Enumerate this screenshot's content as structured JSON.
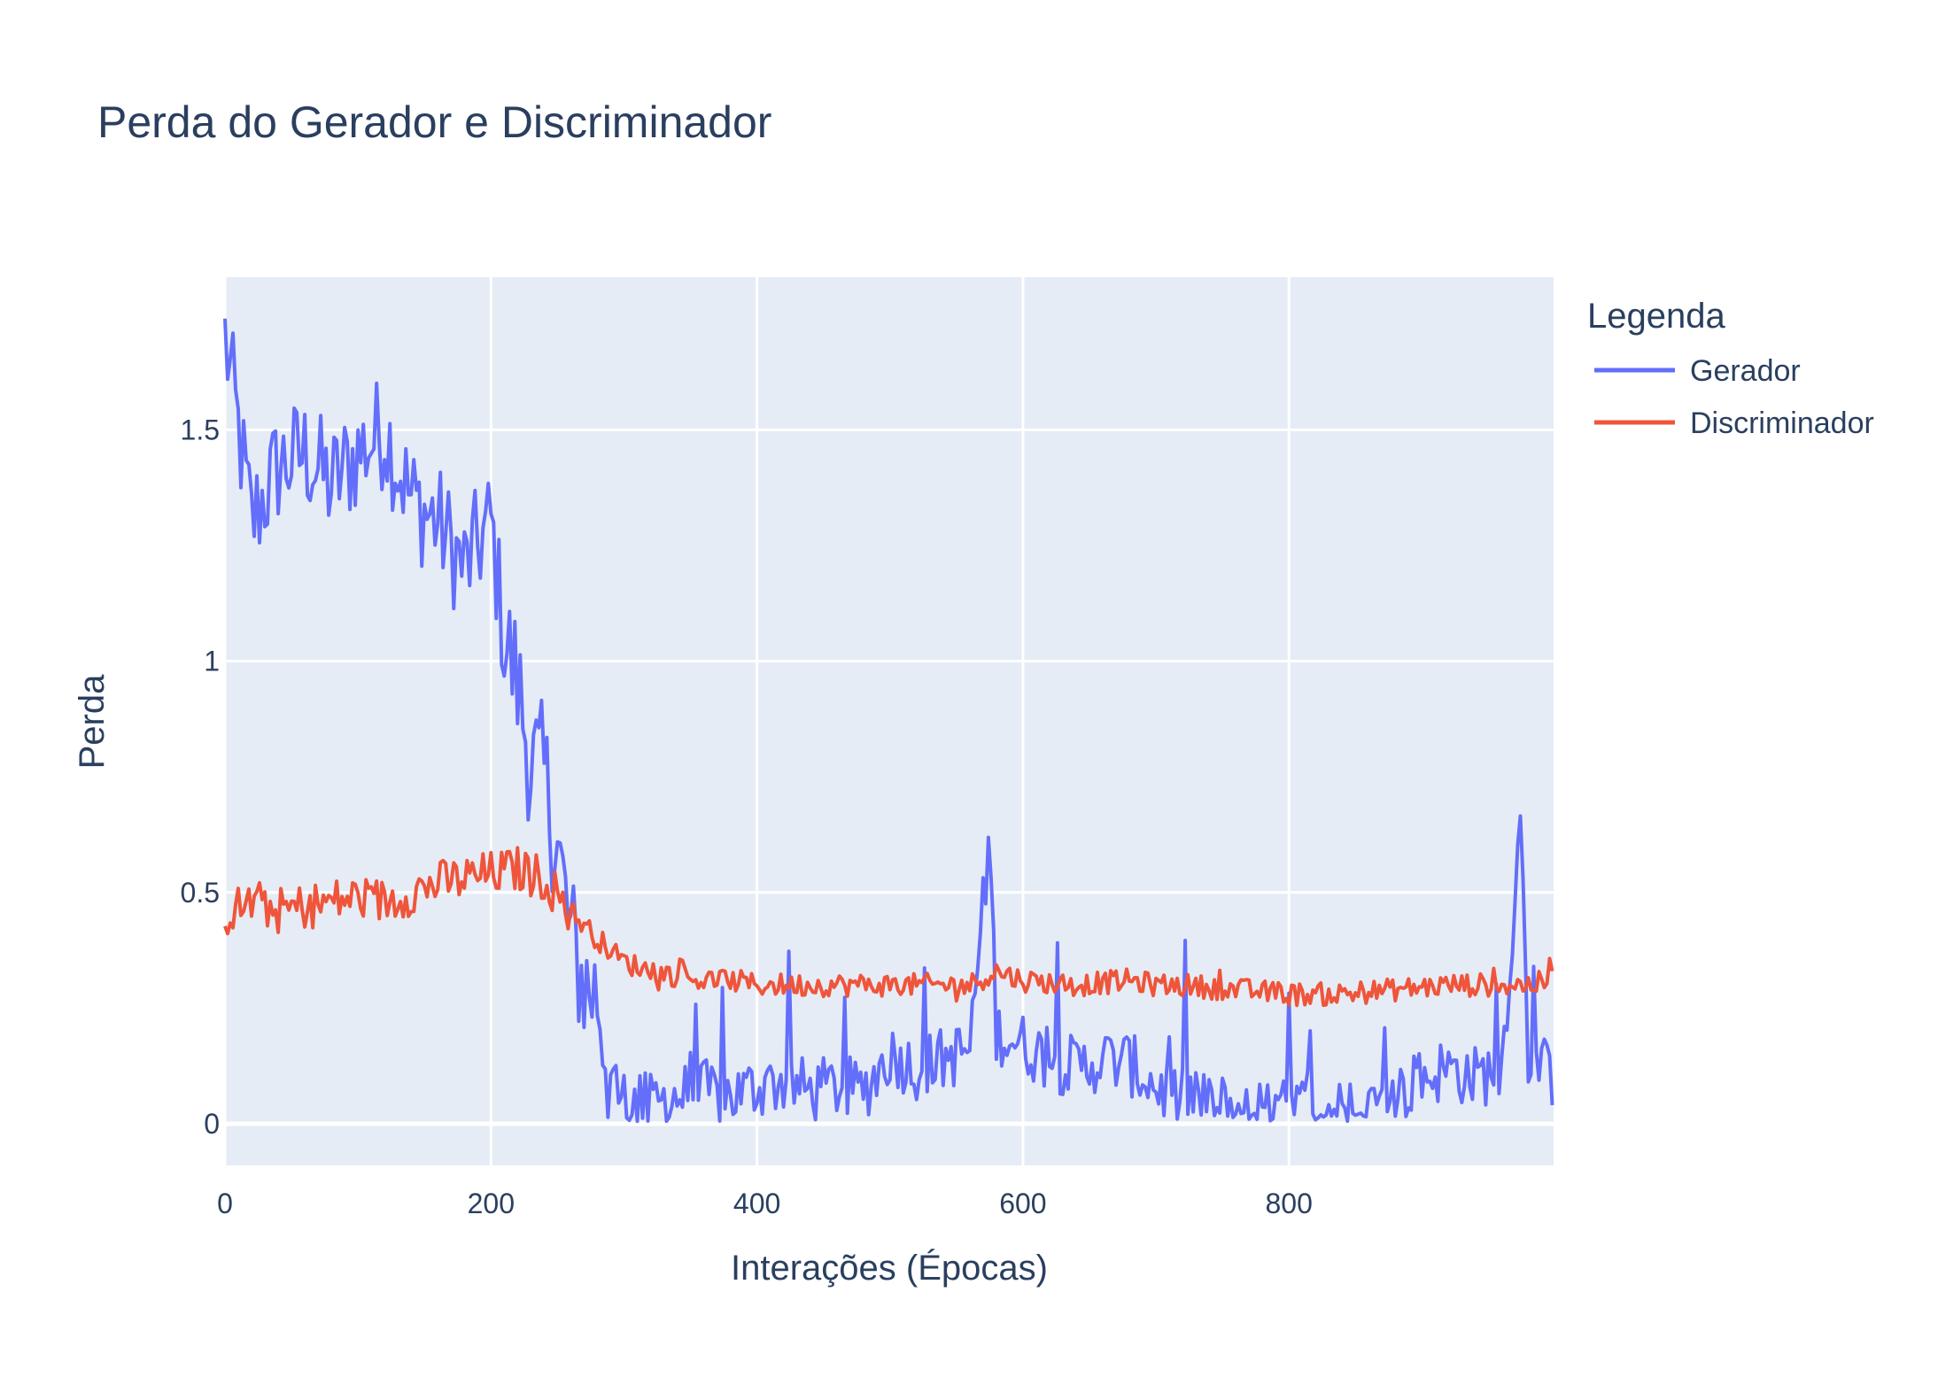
{
  "chart_data": {
    "type": "line",
    "title": "Perda do Gerador e Discriminador",
    "xlabel": "Interações (Épocas)",
    "ylabel": "Perda",
    "xlim": [
      0,
      999
    ],
    "ylim": [
      -0.09,
      1.83
    ],
    "x_ticks": [
      0,
      200,
      400,
      600,
      800
    ],
    "x_tick_labels": [
      "0",
      "200",
      "400",
      "600",
      "800"
    ],
    "y_ticks": [
      0,
      0.5,
      1,
      1.5
    ],
    "y_tick_labels": [
      "0",
      "0.5",
      "1",
      "1.5"
    ],
    "grid": true,
    "background": "#e5ecf6",
    "legend": {
      "title": "Legenda",
      "placement": "right-top",
      "entries": [
        "Gerador",
        "Discriminador"
      ]
    },
    "series": [
      {
        "name": "Gerador",
        "color": "#636efa",
        "x": [
          0,
          20,
          40,
          60,
          80,
          100,
          120,
          140,
          160,
          180,
          200,
          210,
          220,
          230,
          240,
          250,
          260,
          270,
          280,
          290,
          300,
          320,
          340,
          360,
          380,
          400,
          420,
          440,
          460,
          480,
          500,
          520,
          540,
          560,
          575,
          580,
          600,
          620,
          640,
          660,
          680,
          700,
          720,
          740,
          760,
          780,
          800,
          820,
          840,
          860,
          880,
          900,
          920,
          940,
          960,
          975,
          980,
          999
        ],
        "values": [
          1.7,
          1.3,
          1.42,
          1.45,
          1.38,
          1.45,
          1.5,
          1.35,
          1.3,
          1.2,
          1.3,
          1.05,
          0.95,
          0.78,
          0.75,
          0.6,
          0.4,
          0.3,
          0.28,
          0.1,
          0.05,
          0.04,
          0.06,
          0.07,
          0.06,
          0.08,
          0.09,
          0.07,
          0.08,
          0.07,
          0.15,
          0.12,
          0.14,
          0.16,
          0.62,
          0.2,
          0.17,
          0.14,
          0.12,
          0.14,
          0.13,
          0.08,
          0.05,
          0.04,
          0.04,
          0.03,
          0.03,
          0.04,
          0.03,
          0.02,
          0.06,
          0.1,
          0.12,
          0.1,
          0.12,
          0.68,
          0.15,
          0.1
        ]
      },
      {
        "name": "Discriminador",
        "color": "#ef553b",
        "x": [
          0,
          20,
          40,
          60,
          80,
          100,
          120,
          140,
          160,
          180,
          200,
          220,
          240,
          260,
          280,
          300,
          320,
          340,
          360,
          380,
          400,
          440,
          480,
          520,
          560,
          580,
          600,
          640,
          680,
          700,
          720,
          760,
          800,
          840,
          880,
          920,
          960,
          980,
          999
        ],
        "values": [
          0.45,
          0.48,
          0.46,
          0.47,
          0.48,
          0.49,
          0.48,
          0.5,
          0.52,
          0.53,
          0.54,
          0.55,
          0.53,
          0.46,
          0.4,
          0.35,
          0.33,
          0.32,
          0.31,
          0.31,
          0.3,
          0.3,
          0.3,
          0.3,
          0.3,
          0.33,
          0.31,
          0.3,
          0.31,
          0.3,
          0.3,
          0.29,
          0.28,
          0.28,
          0.29,
          0.3,
          0.3,
          0.3,
          0.31
        ]
      }
    ]
  }
}
